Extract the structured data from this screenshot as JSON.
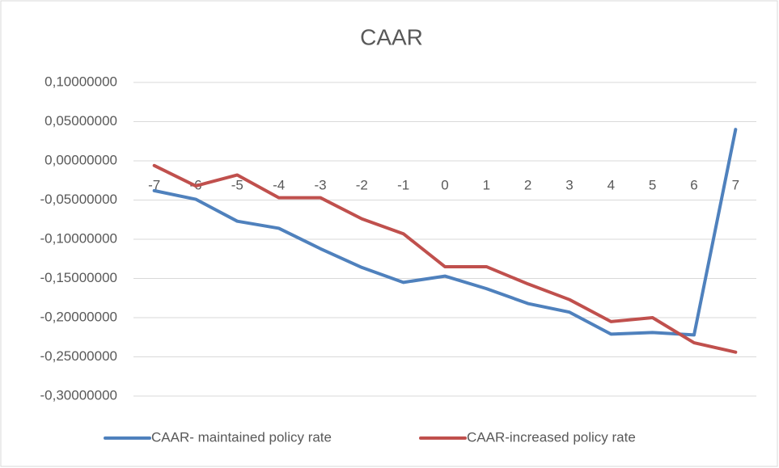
{
  "chart_data": {
    "type": "line",
    "title": "CAAR",
    "categories": [
      "-7",
      "-6",
      "-5",
      "-4",
      "-3",
      "-2",
      "-1",
      "0",
      "1",
      "2",
      "3",
      "4",
      "5",
      "6",
      "7"
    ],
    "series": [
      {
        "name": "CAAR- maintained policy rate",
        "color": "#4f81bd",
        "values": [
          -0.038,
          -0.049,
          -0.077,
          -0.086,
          -0.112,
          -0.136,
          -0.155,
          -0.147,
          -0.163,
          -0.182,
          -0.193,
          -0.221,
          -0.219,
          -0.222,
          0.04
        ]
      },
      {
        "name": "CAAR-increased policy rate",
        "color": "#c0504d",
        "values": [
          -0.006,
          -0.032,
          -0.018,
          -0.047,
          -0.047,
          -0.074,
          -0.093,
          -0.135,
          -0.135,
          -0.157,
          -0.177,
          -0.205,
          -0.2,
          -0.232,
          -0.244
        ]
      }
    ],
    "ylim": [
      -0.3,
      0.1
    ],
    "yticks": [
      {
        "value": 0.1,
        "label": "0,10000000"
      },
      {
        "value": 0.05,
        "label": "0,05000000"
      },
      {
        "value": 0,
        "label": "0,00000000"
      },
      {
        "value": -0.05,
        "label": "-0,05000000"
      },
      {
        "value": -0.1,
        "label": "-0,10000000"
      },
      {
        "value": -0.15,
        "label": "-0,15000000"
      },
      {
        "value": -0.2,
        "label": "-0,20000000"
      },
      {
        "value": -0.25,
        "label": "-0,25000000"
      },
      {
        "value": -0.3,
        "label": "-0,30000000"
      }
    ],
    "grid": true,
    "legend": "bottom"
  }
}
